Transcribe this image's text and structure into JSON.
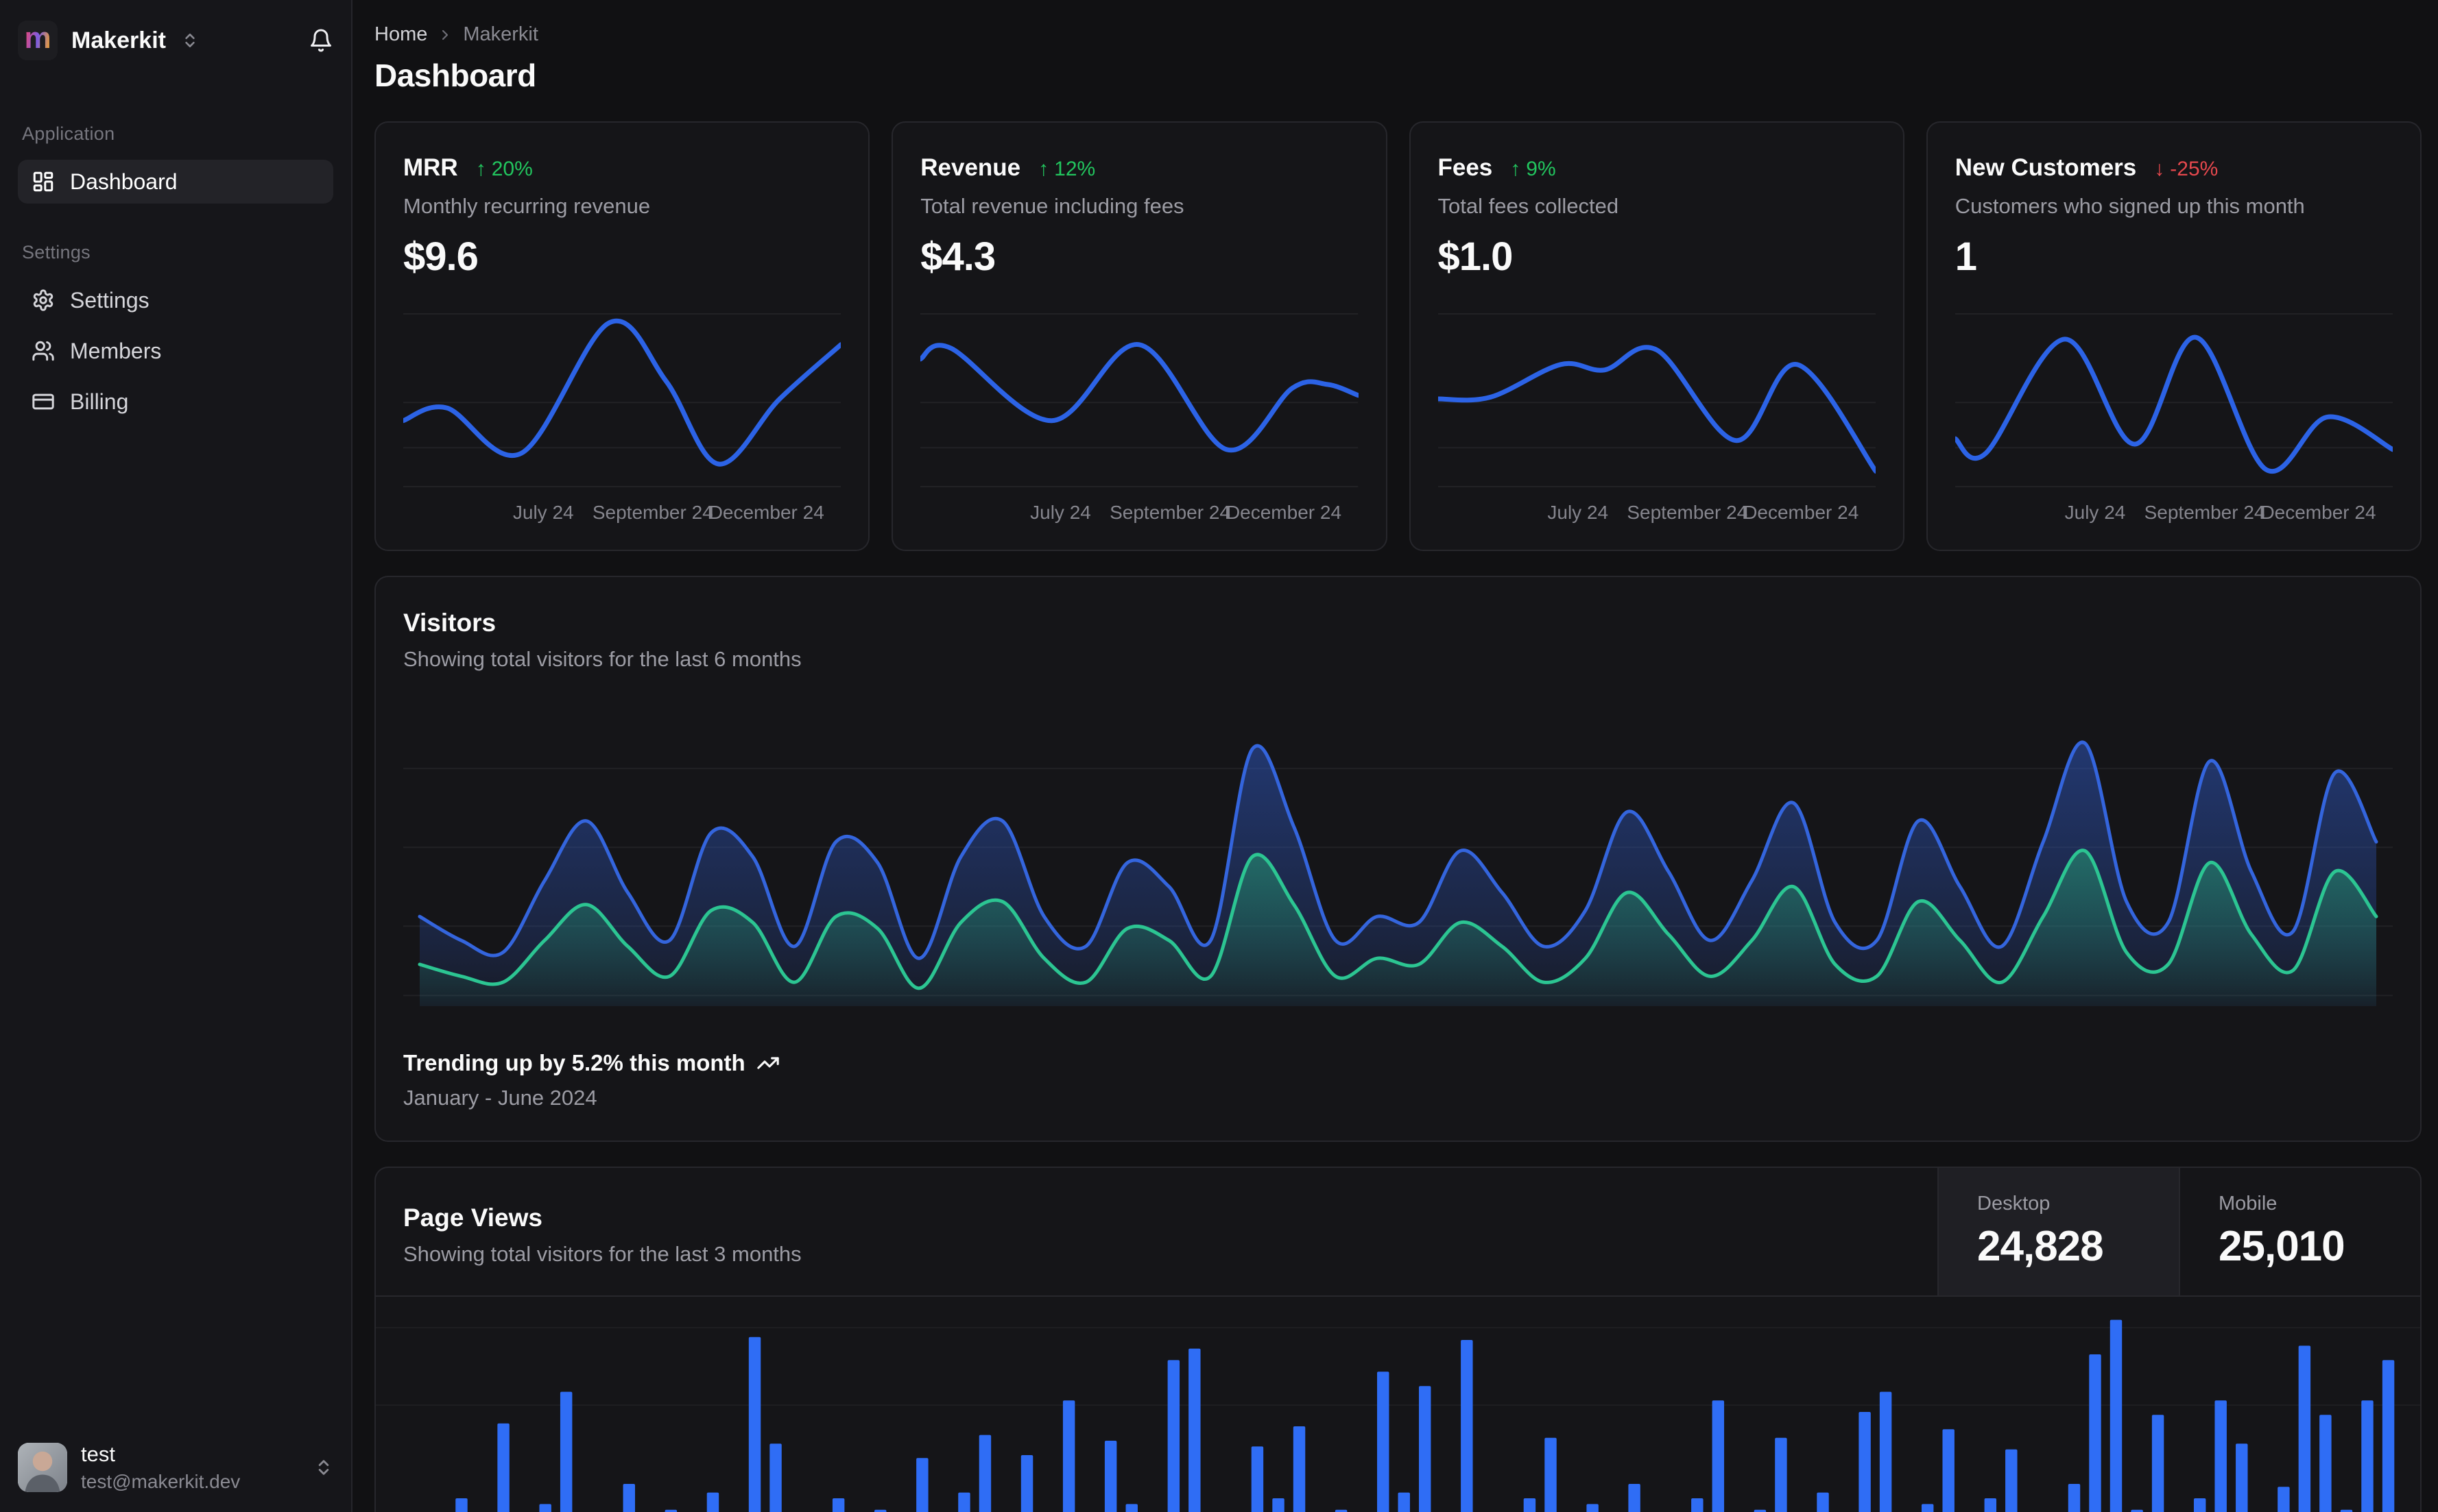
{
  "colors": {
    "line_blue": "#2c63e6",
    "bar_blue": "#2f6df5",
    "area_blue_stroke": "#3465dd",
    "area_green_stroke": "#2cc592",
    "positive": "#22c55e",
    "negative": "#e5484d",
    "grid": "rgba(255,255,255,0.06)"
  },
  "icons": {
    "logo": "m-logo",
    "workspace_switcher": "chevrons-up-down",
    "notifications": "bell",
    "dashboard": "layout-dashboard",
    "settings": "gear",
    "members": "users",
    "billing": "credit-card",
    "breadcrumb_separator": "chevron-right",
    "trend_up_arrow": "arrow-up",
    "trend_down_arrow": "arrow-down",
    "trending_up": "trending-up"
  },
  "sidebar": {
    "workspace": "Makerkit",
    "sections": [
      {
        "label": "Application",
        "items": [
          {
            "label": "Dashboard",
            "active": true
          }
        ]
      },
      {
        "label": "Settings",
        "items": [
          {
            "label": "Settings"
          },
          {
            "label": "Members"
          },
          {
            "label": "Billing"
          }
        ]
      }
    ],
    "user": {
      "name": "test",
      "email": "test@makerkit.dev"
    }
  },
  "breadcrumb": {
    "home": "Home",
    "current": "Makerkit"
  },
  "page_title": "Dashboard",
  "stats": [
    {
      "title": "MRR",
      "arrow": "↑",
      "badge": "20%",
      "direction": "up",
      "desc": "Monthly recurring revenue",
      "value": "$9.6",
      "labels": [
        "July 24",
        "September 24",
        "December 24"
      ]
    },
    {
      "title": "Revenue",
      "arrow": "↑",
      "badge": "12%",
      "direction": "up",
      "desc": "Total revenue including fees",
      "value": "$4.3",
      "labels": [
        "July 24",
        "September 24",
        "December 24"
      ]
    },
    {
      "title": "Fees",
      "arrow": "↑",
      "badge": "9%",
      "direction": "up",
      "desc": "Total fees collected",
      "value": "$1.0",
      "labels": [
        "July 24",
        "September 24",
        "December 24"
      ]
    },
    {
      "title": "New Customers",
      "arrow": "↓",
      "badge": "-25%",
      "direction": "down",
      "desc": "Customers who signed up this month",
      "value": "1",
      "labels": [
        "July 24",
        "September 24",
        "December 24"
      ]
    }
  ],
  "visitors": {
    "title": "Visitors",
    "subtitle": "Showing total visitors for the last 6 months",
    "trend_text": "Trending up by 5.2% this month",
    "period": "January - June 2024"
  },
  "page_views": {
    "title": "Page Views",
    "subtitle": "Showing total visitors for the last 3 months",
    "toggles": [
      {
        "label": "Desktop",
        "value": "24,828",
        "active": true
      },
      {
        "label": "Mobile",
        "value": "25,010",
        "active": false
      }
    ]
  },
  "chart_data": [
    {
      "id": "mrr_sparkline",
      "type": "line",
      "title": "MRR",
      "x_tick_labels": [
        "July 24",
        "September 24",
        "December 24"
      ],
      "points_xy_fraction": [
        [
          0,
          0.62
        ],
        [
          0.1,
          0.55
        ],
        [
          0.27,
          0.8
        ],
        [
          0.47,
          0.08
        ],
        [
          0.6,
          0.4
        ],
        [
          0.72,
          0.86
        ],
        [
          0.86,
          0.5
        ],
        [
          1,
          0.2
        ]
      ]
    },
    {
      "id": "revenue_sparkline",
      "type": "line",
      "title": "Revenue",
      "x_tick_labels": [
        "July 24",
        "September 24",
        "December 24"
      ],
      "points_xy_fraction": [
        [
          0,
          0.28
        ],
        [
          0.07,
          0.22
        ],
        [
          0.3,
          0.62
        ],
        [
          0.5,
          0.2
        ],
        [
          0.7,
          0.78
        ],
        [
          0.85,
          0.44
        ],
        [
          0.93,
          0.42
        ],
        [
          1,
          0.48
        ]
      ]
    },
    {
      "id": "fees_sparkline",
      "type": "line",
      "title": "Fees",
      "x_tick_labels": [
        "July 24",
        "September 24",
        "December 24"
      ],
      "points_xy_fraction": [
        [
          0,
          0.5
        ],
        [
          0.12,
          0.49
        ],
        [
          0.28,
          0.31
        ],
        [
          0.38,
          0.34
        ],
        [
          0.5,
          0.23
        ],
        [
          0.68,
          0.73
        ],
        [
          0.82,
          0.31
        ],
        [
          1,
          0.9
        ]
      ]
    },
    {
      "id": "new_customers_sparkline",
      "type": "line",
      "title": "New Customers",
      "x_tick_labels": [
        "July 24",
        "September 24",
        "December 24"
      ],
      "points_xy_fraction": [
        [
          0,
          0.72
        ],
        [
          0.07,
          0.8
        ],
        [
          0.25,
          0.17
        ],
        [
          0.41,
          0.75
        ],
        [
          0.55,
          0.16
        ],
        [
          0.71,
          0.89
        ],
        [
          0.85,
          0.6
        ],
        [
          1,
          0.78
        ]
      ]
    },
    {
      "id": "visitors_area",
      "type": "area",
      "title": "Visitors",
      "x_range_label": "January - June 2024",
      "grid": "horizontal",
      "legend_position": "none",
      "series": [
        {
          "name": "desktop",
          "color": "#3465dd",
          "values_fraction": [
            0.3,
            0.22,
            0.18,
            0.42,
            0.62,
            0.38,
            0.22,
            0.58,
            0.5,
            0.2,
            0.55,
            0.48,
            0.16,
            0.5,
            0.62,
            0.3,
            0.2,
            0.48,
            0.4,
            0.22,
            0.86,
            0.6,
            0.22,
            0.3,
            0.28,
            0.52,
            0.38,
            0.2,
            0.32,
            0.65,
            0.45,
            0.22,
            0.42,
            0.68,
            0.28,
            0.22,
            0.62,
            0.4,
            0.2,
            0.55,
            0.88,
            0.35,
            0.28,
            0.82,
            0.45,
            0.25,
            0.78,
            0.55
          ]
        },
        {
          "name": "mobile",
          "color": "#2cc592",
          "values_fraction": [
            0.14,
            0.1,
            0.08,
            0.22,
            0.34,
            0.2,
            0.1,
            0.32,
            0.28,
            0.08,
            0.3,
            0.26,
            0.06,
            0.28,
            0.35,
            0.16,
            0.08,
            0.26,
            0.22,
            0.1,
            0.5,
            0.34,
            0.1,
            0.16,
            0.14,
            0.28,
            0.2,
            0.08,
            0.16,
            0.38,
            0.24,
            0.1,
            0.22,
            0.4,
            0.14,
            0.1,
            0.35,
            0.22,
            0.08,
            0.3,
            0.52,
            0.18,
            0.14,
            0.48,
            0.24,
            0.12,
            0.45,
            0.3
          ]
        }
      ]
    },
    {
      "id": "page_views_bars",
      "type": "bar",
      "title": "Page Views",
      "bar_color": "#2f6df5",
      "values_fraction": [
        0.18,
        0.25,
        0.12,
        0.3,
        0.2,
        0.56,
        0.15,
        0.28,
        0.67,
        0.22,
        0.12,
        0.35,
        0.18,
        0.26,
        0.14,
        0.32,
        0.2,
        0.86,
        0.49,
        0.24,
        0.15,
        0.3,
        0.18,
        0.26,
        0.12,
        0.44,
        0.2,
        0.32,
        0.52,
        0.16,
        0.45,
        0.24,
        0.64,
        0.14,
        0.5,
        0.28,
        0.18,
        0.78,
        0.82,
        0.22,
        0.12,
        0.48,
        0.3,
        0.55,
        0.16,
        0.26,
        0.2,
        0.74,
        0.32,
        0.69,
        0.14,
        0.85,
        0.24,
        0.18,
        0.3,
        0.51,
        0.12,
        0.28,
        0.22,
        0.35,
        0.16,
        0.24,
        0.3,
        0.64,
        0.18,
        0.26,
        0.51,
        0.14,
        0.32,
        0.22,
        0.6,
        0.67,
        0.2,
        0.28,
        0.54,
        0.16,
        0.3,
        0.47,
        0.24,
        0.12,
        0.35,
        0.8,
        0.92,
        0.26,
        0.59,
        0.18,
        0.3,
        0.64,
        0.49,
        0.22,
        0.34,
        0.83,
        0.59,
        0.26,
        0.64,
        0.78
      ]
    }
  ]
}
